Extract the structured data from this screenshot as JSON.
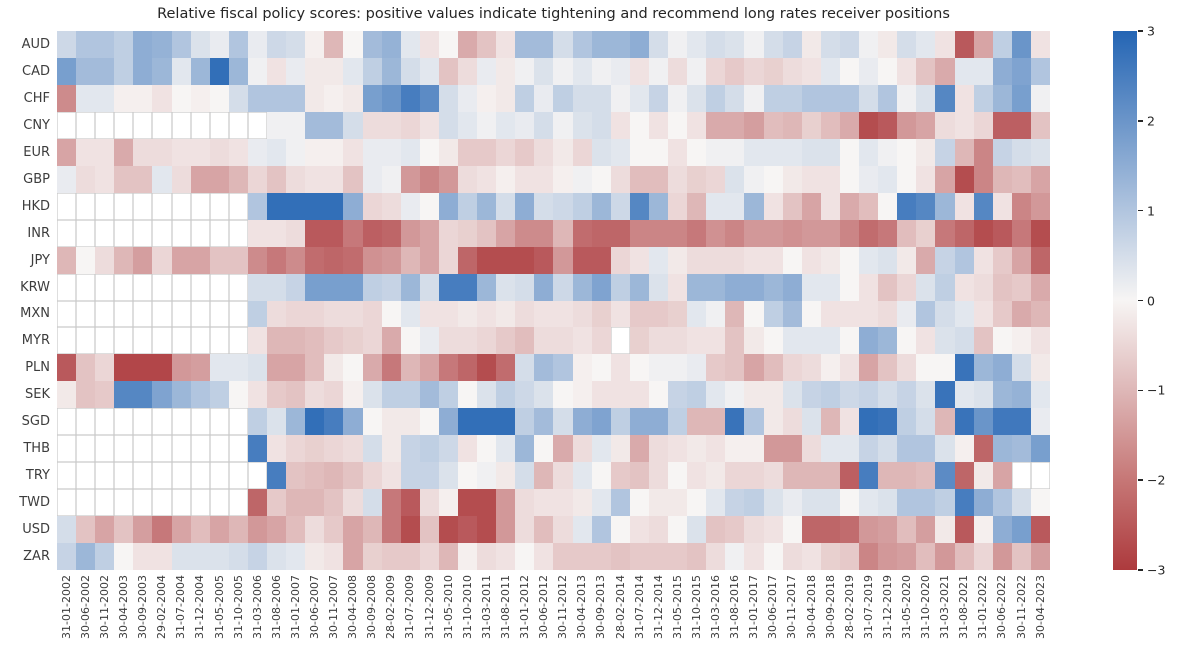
{
  "title": "Relative fiscal policy scores: positive values indicate tightening and recommend long rates receiver positions",
  "chart_data": {
    "type": "heatmap",
    "title": "Relative fiscal policy scores: positive values indicate tightening and recommend long rates receiver positions",
    "legend_position": "right",
    "value_range": [
      -3,
      3
    ],
    "colorbar_ticks": [
      3,
      2,
      1,
      0,
      -1,
      -2,
      -3
    ],
    "colors": {
      "positive_max": "#2465b4",
      "zero": "#f7f5f4",
      "negative_max": "#ad3a3d",
      "missing": "#ffffff",
      "missing_grid": "#c9c9c9"
    },
    "x_labels": [
      "31-01-2002",
      "30-06-2002",
      "30-11-2002",
      "30-04-2003",
      "30-09-2003",
      "29-02-2004",
      "31-07-2004",
      "31-12-2004",
      "31-05-2005",
      "31-10-2005",
      "31-03-2006",
      "31-08-2006",
      "31-01-2007",
      "30-06-2007",
      "30-11-2007",
      "30-04-2008",
      "30-09-2008",
      "28-02-2009",
      "31-07-2009",
      "31-12-2009",
      "31-05-2010",
      "31-10-2010",
      "31-03-2011",
      "31-08-2011",
      "31-01-2012",
      "30-06-2012",
      "30-11-2012",
      "30-04-2013",
      "30-09-2013",
      "28-02-2014",
      "31-07-2014",
      "31-12-2014",
      "31-05-2015",
      "31-10-2015",
      "31-03-2016",
      "31-08-2016",
      "31-01-2017",
      "30-06-2017",
      "30-11-2017",
      "30-04-2018",
      "30-09-2018",
      "28-02-2019",
      "31-07-2019",
      "31-12-2019",
      "31-05-2020",
      "31-10-2020",
      "31-03-2021",
      "31-08-2021",
      "31-01-2022",
      "30-06-2022",
      "30-11-2022",
      "30-04-2023"
    ],
    "y_labels": [
      "AUD",
      "CAD",
      "CHF",
      "CNY",
      "EUR",
      "GBP",
      "HKD",
      "INR",
      "JPY",
      "KRW",
      "MXN",
      "MYR",
      "PLN",
      "SEK",
      "SGD",
      "THB",
      "TRY",
      "TWD",
      "USD",
      "ZAR"
    ],
    "values": [
      [
        0.6,
        1,
        1,
        0.8,
        1.5,
        1.4,
        1,
        0.4,
        0.2,
        1,
        0.2,
        0.6,
        0.5,
        -0.1,
        -1,
        0,
        1.2,
        1.4,
        0.3,
        -0.3,
        0,
        -1.2,
        -0.8,
        -0.3,
        1.2,
        1.2,
        0.5,
        1,
        1.3,
        1.3,
        1.5,
        0.5,
        0.1,
        0.3,
        0.5,
        0.4,
        0.1,
        0.5,
        0.7,
        -0.2,
        0.5,
        0.6,
        0.1,
        -0.2,
        0.5,
        0.3,
        -0.3,
        -2.5,
        -1.3,
        0.8,
        2,
        -0.3
      ],
      [
        1.8,
        1.2,
        1.2,
        0.8,
        1.5,
        1.3,
        0.3,
        1.3,
        2.8,
        1.3,
        0.1,
        -0.3,
        0.2,
        -0.2,
        -0.2,
        0.3,
        0.8,
        1.3,
        0.5,
        0.3,
        -0.8,
        -0.4,
        0.2,
        -0.2,
        0.1,
        0.4,
        0.1,
        0.3,
        0.1,
        0.2,
        -0.3,
        0.1,
        -0.4,
        0.1,
        -0.5,
        -0.7,
        -0.5,
        -0.6,
        -0.4,
        -0.3,
        0.3,
        0,
        0.2,
        0,
        -0.3,
        -0.8,
        -1.2,
        0.3,
        0.3,
        1.5,
        1.7,
        1
      ],
      [
        -1.7,
        0.3,
        0.3,
        -0.1,
        -0.1,
        -0.3,
        0,
        -0.1,
        0,
        0.5,
        1,
        1,
        1,
        -0.2,
        -0.1,
        -0.2,
        1.8,
        2,
        2.5,
        2.2,
        0.5,
        0.2,
        -0.1,
        -0.2,
        0.8,
        0.2,
        0.8,
        0.5,
        0.5,
        0.1,
        0.3,
        0.7,
        0.1,
        0.4,
        0.8,
        0.5,
        0.1,
        0.8,
        0.8,
        1,
        1,
        1,
        0.5,
        1,
        0.1,
        0.4,
        2.3,
        -0.3,
        0.8,
        1.3,
        1.8,
        0.1
      ],
      [
        null,
        null,
        null,
        null,
        null,
        null,
        null,
        null,
        null,
        null,
        null,
        0.1,
        0.1,
        1.2,
        1.2,
        0.5,
        -0.4,
        -0.4,
        -0.5,
        -0.3,
        0.5,
        0.3,
        0.1,
        0.3,
        0.2,
        0.5,
        0.1,
        0.4,
        0.5,
        -0.3,
        0,
        -0.3,
        0,
        -0.3,
        -1.2,
        -1.2,
        -1.4,
        -0.9,
        -1,
        -0.6,
        -0.9,
        -1.2,
        -2.7,
        -2.5,
        -1.5,
        -1.3,
        -0.4,
        -0.3,
        -0.5,
        -2.4,
        -2.4,
        -0.8
      ],
      [
        -1.3,
        -0.3,
        -0.3,
        -1.2,
        -0.4,
        -0.4,
        -0.3,
        -0.3,
        -0.4,
        -0.3,
        0.2,
        0.3,
        0.1,
        -0.1,
        -0.1,
        -0.3,
        0.2,
        0.2,
        0.3,
        0,
        -0.2,
        -0.7,
        -0.7,
        -0.5,
        -0.7,
        -0.4,
        -0.2,
        -0.5,
        0.4,
        0.3,
        0,
        0,
        -0.3,
        0,
        0.1,
        0.1,
        0.3,
        0.3,
        0.3,
        0.4,
        0.4,
        0,
        0.3,
        0.1,
        0,
        -0.2,
        0.7,
        -1,
        -1.8,
        0.7,
        0.5,
        0.4
      ],
      [
        0.2,
        -0.4,
        -0.3,
        -0.8,
        -0.8,
        0.3,
        -0.4,
        -1.3,
        -1.3,
        -1,
        -0.5,
        -0.8,
        -0.4,
        -0.3,
        -0.3,
        -0.8,
        0.2,
        0.1,
        -1.5,
        -1.8,
        -1.5,
        -0.4,
        -0.3,
        -0.1,
        -0.3,
        -0.3,
        -0.1,
        0.1,
        0,
        -0.4,
        -0.9,
        -0.9,
        -0.4,
        -0.6,
        -0.5,
        0.4,
        0.1,
        0,
        -0.2,
        -0.3,
        -0.3,
        0,
        0.2,
        0.3,
        0,
        -0.3,
        -1.3,
        -2.7,
        -1.8,
        -1,
        -0.9,
        -1.3
      ],
      [
        null,
        null,
        null,
        null,
        null,
        null,
        null,
        null,
        null,
        null,
        1,
        2.8,
        2.8,
        2.8,
        2.8,
        1.5,
        -0.5,
        -0.4,
        0.2,
        0,
        1.5,
        0.8,
        1.3,
        0.5,
        1.5,
        0.5,
        0.6,
        0.8,
        1.3,
        0.6,
        2.3,
        1.3,
        -0.5,
        -1,
        0.3,
        0.3,
        1.3,
        -0.3,
        -0.8,
        -1.3,
        -0.3,
        -1.2,
        -0.9,
        0,
        2.5,
        2.3,
        1.3,
        -0.3,
        2.3,
        -0.3,
        -1.8,
        -1.5
      ],
      [
        null,
        null,
        null,
        null,
        null,
        null,
        null,
        null,
        null,
        null,
        -0.3,
        -0.3,
        -0.4,
        -2.5,
        -2.5,
        -2,
        -2.4,
        -2.3,
        -1.5,
        -1.3,
        -0.5,
        -0.6,
        -0.8,
        -1.3,
        -1.7,
        -1.7,
        -1,
        -2.2,
        -2.3,
        -2.3,
        -1.8,
        -1.8,
        -1.8,
        -2,
        -1.6,
        -1.8,
        -1.5,
        -1.5,
        -1.6,
        -1.5,
        -1.5,
        -1.8,
        -2.2,
        -2,
        -0.9,
        -0.6,
        -2,
        -2.3,
        -2.7,
        -2.5,
        -2,
        -2.7
      ],
      [
        -1,
        0,
        -0.4,
        -1,
        -1.4,
        -0.5,
        -1.3,
        -1.3,
        -0.8,
        -0.8,
        -1.7,
        -2,
        -1.7,
        -2.2,
        -2.3,
        -2.2,
        -1.6,
        -1.5,
        -1,
        -1.3,
        -0.5,
        -2.3,
        -2.7,
        -2.7,
        -2.7,
        -2.5,
        -1.5,
        -2.5,
        -2.5,
        -0.5,
        -0.3,
        0.3,
        -0.2,
        -0.4,
        -0.4,
        -0.4,
        -0.3,
        -0.3,
        0,
        -0.3,
        -0.2,
        0,
        0.3,
        0.4,
        -0.2,
        -1.2,
        0.7,
        1,
        -0.3,
        -0.7,
        -1.3,
        -2.3
      ],
      [
        null,
        null,
        null,
        null,
        null,
        null,
        null,
        null,
        null,
        null,
        0.5,
        0.5,
        0.7,
        1.8,
        1.8,
        1.8,
        0.8,
        0.7,
        1.3,
        0.5,
        2.5,
        2.5,
        1.3,
        0.4,
        0.5,
        1.5,
        0.6,
        1.3,
        1.7,
        0.8,
        1.3,
        0.4,
        -0.3,
        1.3,
        1.3,
        1.5,
        1.5,
        1.3,
        1.5,
        0.3,
        0.3,
        0,
        -0.3,
        -0.8,
        -0.5,
        0.4,
        0.8,
        -0.3,
        -0.4,
        -0.8,
        -0.7,
        -1.2
      ],
      [
        null,
        null,
        null,
        null,
        null,
        null,
        null,
        null,
        null,
        null,
        0.8,
        -0.4,
        -0.5,
        -0.5,
        -0.4,
        -0.4,
        -0.5,
        0,
        0.3,
        -0.3,
        -0.3,
        -0.2,
        -0.3,
        -0.2,
        -0.4,
        -0.3,
        -0.3,
        -0.4,
        -0.6,
        -0.3,
        -0.7,
        -0.7,
        -0.6,
        0.3,
        0.1,
        -1,
        0,
        0.8,
        1.2,
        0,
        -0.3,
        -0.3,
        -0.3,
        -0.4,
        0.2,
        1,
        0.5,
        0.3,
        -0.3,
        -0.7,
        -1.2,
        -1
      ],
      [
        null,
        null,
        null,
        null,
        null,
        null,
        null,
        null,
        null,
        null,
        -0.3,
        -1,
        -1,
        -0.9,
        -0.7,
        -0.6,
        -0.5,
        -1.2,
        0,
        0.2,
        -0.4,
        -0.4,
        -0.5,
        -0.7,
        -0.9,
        -0.4,
        -0.4,
        -0.3,
        -0.5,
        null,
        -0.6,
        -0.4,
        -0.4,
        -0.3,
        -0.3,
        -0.8,
        -0.2,
        0,
        0.3,
        0.3,
        0.3,
        0,
        1.5,
        1.3,
        0,
        -0.3,
        0.4,
        0.5,
        -0.8,
        0,
        -0.1,
        -0.3
      ],
      [
        -2.5,
        -0.8,
        -0.5,
        -2.8,
        -2.8,
        -2.8,
        -1.5,
        -1.4,
        0.3,
        0.3,
        0.4,
        -1.3,
        -1.3,
        -0.9,
        -0.2,
        0,
        -1.2,
        -2,
        -1,
        -1.3,
        -2,
        -2.3,
        -2.7,
        -2.2,
        0.5,
        1.2,
        1,
        -0.1,
        0,
        -0.3,
        0,
        0.1,
        0.1,
        0.2,
        -0.7,
        -0.8,
        -1.3,
        -0.9,
        -0.5,
        -0.4,
        -0.1,
        -0.3,
        -1.3,
        -0.8,
        -0.4,
        0,
        0,
        2.7,
        1.3,
        1.5,
        0.5,
        -0.2
      ],
      [
        -0.2,
        -0.8,
        -0.7,
        2.3,
        2.3,
        1.7,
        1.3,
        1,
        0.8,
        0,
        -0.3,
        -0.7,
        -0.8,
        -0.4,
        -0.5,
        -0.1,
        0.4,
        0.8,
        0.8,
        1.2,
        0.8,
        0,
        0.4,
        0.8,
        0.6,
        0.4,
        0,
        -0.1,
        -0.3,
        -0.3,
        -0.3,
        0,
        0.7,
        0.8,
        0.3,
        0.1,
        -0.2,
        -0.2,
        0.4,
        0.7,
        0.8,
        0.6,
        0.7,
        0.5,
        0.7,
        0.4,
        2.7,
        0.3,
        0.4,
        1.3,
        1.4,
        0.3
      ],
      [
        null,
        null,
        null,
        null,
        null,
        null,
        null,
        null,
        null,
        null,
        0.8,
        0.4,
        1.3,
        2.8,
        2.5,
        1.5,
        0,
        -0.2,
        -0.2,
        0,
        1.5,
        2.8,
        2.8,
        2.8,
        0.8,
        1.2,
        0.5,
        1.5,
        1.7,
        0.8,
        1.5,
        1.5,
        0.8,
        -1,
        -1,
        2.7,
        1,
        -0.2,
        -0.4,
        0.4,
        -1,
        -0.3,
        2.8,
        2.7,
        0.8,
        0.5,
        -1,
        2.7,
        2,
        2.6,
        2.6,
        0.2
      ],
      [
        null,
        null,
        null,
        null,
        null,
        null,
        null,
        null,
        null,
        null,
        2.5,
        -0.3,
        -0.5,
        -0.6,
        -0.5,
        -0.4,
        0.5,
        -0.2,
        0.7,
        0.8,
        0.6,
        -0.3,
        0,
        0.3,
        1.3,
        0,
        -1.2,
        -0.4,
        0.3,
        -0.2,
        -1.2,
        -0.4,
        -0.3,
        -0.2,
        -0.3,
        -0.1,
        -0.1,
        -1.5,
        -1.5,
        -0.4,
        0.3,
        0.3,
        0.7,
        0.5,
        1,
        1,
        0.4,
        -0.1,
        -2.3,
        1.3,
        1.2,
        1.8
      ],
      [
        null,
        null,
        null,
        null,
        null,
        null,
        null,
        null,
        null,
        null,
        null,
        2.5,
        -0.8,
        -0.9,
        -1,
        -0.8,
        -0.5,
        -0.3,
        0.7,
        0.7,
        0.4,
        0,
        0.1,
        -0.2,
        0.5,
        -1,
        -0.4,
        0.3,
        0,
        -0.7,
        -0.8,
        -0.4,
        0,
        -0.3,
        -0.2,
        -0.5,
        -0.5,
        -0.4,
        -1,
        -1,
        -1,
        -2.4,
        2.5,
        -1,
        -1,
        -0.9,
        2.2,
        -2.3,
        -0.2,
        -1.3,
        null,
        null
      ],
      [
        null,
        null,
        null,
        null,
        null,
        null,
        null,
        null,
        null,
        null,
        -2.3,
        -0.7,
        -1,
        -1,
        -0.8,
        -0.4,
        0.5,
        -2,
        -2.5,
        -0.4,
        -0.1,
        -2.7,
        -2.7,
        -1.5,
        -0.4,
        -0.3,
        -0.3,
        -0.2,
        0.3,
        1,
        0,
        -0.2,
        -0.2,
        0,
        0.3,
        0.7,
        0.8,
        0.4,
        0.2,
        0.4,
        0.4,
        0,
        0.3,
        0.4,
        1,
        1,
        0.8,
        2.5,
        1.5,
        1,
        0.5,
        0
      ],
      [
        0.5,
        -0.8,
        -1.3,
        -0.8,
        -1.4,
        -2,
        -1.3,
        -0.9,
        -1.3,
        -1,
        -1.5,
        -1.3,
        -0.9,
        -0.4,
        -0.7,
        -1.3,
        -1,
        -2,
        -2.7,
        -0.8,
        -2.7,
        -2.5,
        -2.7,
        -1.5,
        -0.4,
        -0.9,
        -0.4,
        0.3,
        1,
        0,
        -0.3,
        -0.4,
        0,
        0.4,
        -0.8,
        -0.7,
        -0.4,
        -0.3,
        0,
        -2.3,
        -2.3,
        -2.2,
        -1.5,
        -1.4,
        -0.9,
        -1.4,
        -0.2,
        -2.5,
        -0.1,
        1.5,
        1.8,
        -2.5
      ],
      [
        0.7,
        1.3,
        0.8,
        0,
        -0.3,
        -0.3,
        0.4,
        0.4,
        0.4,
        0.5,
        0.7,
        0.4,
        0.3,
        -0.2,
        -0.3,
        -1.3,
        -0.6,
        -0.7,
        -0.7,
        -0.5,
        -1,
        -0.1,
        -0.4,
        -0.3,
        0,
        -0.3,
        -0.7,
        -0.7,
        -0.7,
        -0.8,
        -0.7,
        -0.7,
        -0.7,
        -0.8,
        -0.4,
        0.1,
        -0.3,
        0,
        -0.4,
        -0.3,
        -0.6,
        -0.7,
        -1.8,
        -1.5,
        -1.4,
        -0.9,
        -1.5,
        -0.9,
        -0.5,
        -1.5,
        -0.8,
        -1.4
      ]
    ]
  }
}
